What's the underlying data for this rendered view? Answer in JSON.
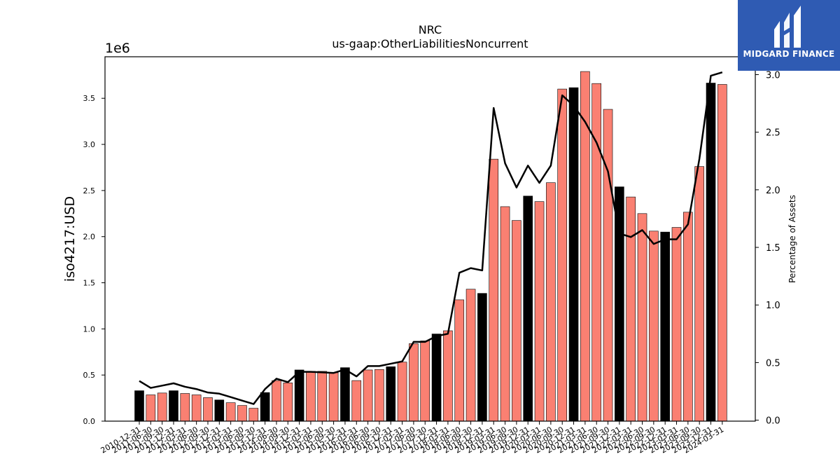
{
  "chart_data": {
    "type": "bar",
    "title": "NRC",
    "subtitle": "us-gaap:OtherLiabilitiesNoncurrent",
    "ylabel": "iso4217:USD",
    "y_offset_label": "1e6",
    "y2label": "Percentage of Assets",
    "ylim": [
      0,
      3950000
    ],
    "y2lim": [
      -0.0085,
      3.155
    ],
    "yticks": [
      0.0,
      0.5,
      1.0,
      1.5,
      2.0,
      2.5,
      3.0,
      3.5
    ],
    "y2ticks": [
      0.0,
      0.5,
      1.0,
      1.5,
      2.0,
      2.5,
      3.0
    ],
    "grid": false,
    "bar_colors": {
      "annual": "#000000",
      "quarterly": "#fa8072"
    },
    "categories": [
      "2010-12-31",
      "2011-06-30",
      "2011-09-30",
      "2011-12-31",
      "2012-03-31",
      "2012-06-30",
      "2012-09-30",
      "2012-12-31",
      "2013-03-31",
      "2013-06-30",
      "2013-09-30",
      "2013-12-31",
      "2014-06-30",
      "2014-09-30",
      "2014-12-31",
      "2015-03-31",
      "2015-06-30",
      "2015-09-30",
      "2015-12-31",
      "2016-03-31",
      "2016-06-30",
      "2016-09-30",
      "2016-12-31",
      "2017-03-31",
      "2017-06-30",
      "2017-09-30",
      "2017-12-31",
      "2018-03-31",
      "2018-06-30",
      "2018-09-30",
      "2018-12-31",
      "2019-03-31",
      "2019-06-30",
      "2019-09-30",
      "2019-12-31",
      "2020-03-31",
      "2020-06-30",
      "2020-09-30",
      "2020-12-31",
      "2021-03-31",
      "2021-06-30",
      "2021-09-30",
      "2021-12-31",
      "2022-03-31",
      "2022-06-30",
      "2022-09-30",
      "2022-12-31",
      "2023-03-31",
      "2023-06-30",
      "2023-09-30",
      "2023-12-31",
      "2024-03-31"
    ],
    "series": [
      {
        "type": "bar",
        "values": [
          330000,
          285000,
          305000,
          330000,
          300000,
          285000,
          255000,
          230000,
          200000,
          170000,
          140000,
          310000,
          440000,
          415000,
          555000,
          540000,
          540000,
          525000,
          580000,
          440000,
          555000,
          560000,
          590000,
          640000,
          840000,
          870000,
          945000,
          980000,
          1315000,
          1430000,
          1385000,
          2840000,
          2325000,
          2175000,
          2440000,
          2380000,
          2585000,
          3600000,
          3615000,
          3790000,
          3660000,
          3380000,
          2540000,
          2430000,
          2250000,
          2060000,
          2050000,
          2100000,
          2265000,
          2760000,
          3665000,
          3650000
        ],
        "annual": [
          true,
          false,
          false,
          true,
          false,
          false,
          false,
          true,
          false,
          false,
          false,
          true,
          false,
          false,
          true,
          false,
          false,
          false,
          true,
          false,
          false,
          false,
          true,
          false,
          false,
          false,
          true,
          false,
          false,
          false,
          true,
          false,
          false,
          false,
          true,
          false,
          false,
          false,
          true,
          false,
          false,
          false,
          true,
          false,
          false,
          false,
          true,
          false,
          false,
          false,
          true,
          false
        ]
      },
      {
        "type": "line",
        "axis": "right",
        "color": "#000000",
        "values": [
          0.34,
          0.28,
          0.3,
          0.32,
          0.29,
          0.27,
          0.24,
          0.23,
          0.2,
          0.17,
          0.14,
          0.27,
          0.36,
          0.33,
          0.42,
          0.42,
          0.415,
          0.41,
          0.44,
          0.38,
          0.47,
          0.47,
          0.49,
          0.51,
          0.68,
          0.68,
          0.73,
          0.75,
          1.28,
          1.32,
          1.3,
          2.71,
          2.23,
          2.02,
          2.21,
          2.06,
          2.21,
          2.82,
          2.73,
          2.59,
          2.41,
          2.16,
          1.62,
          1.59,
          1.65,
          1.53,
          1.57,
          1.57,
          1.7,
          2.27,
          2.99,
          3.02
        ]
      }
    ]
  },
  "logo": {
    "text": "MIDGARD FINANCE",
    "icon": "midgard-logo-icon"
  }
}
